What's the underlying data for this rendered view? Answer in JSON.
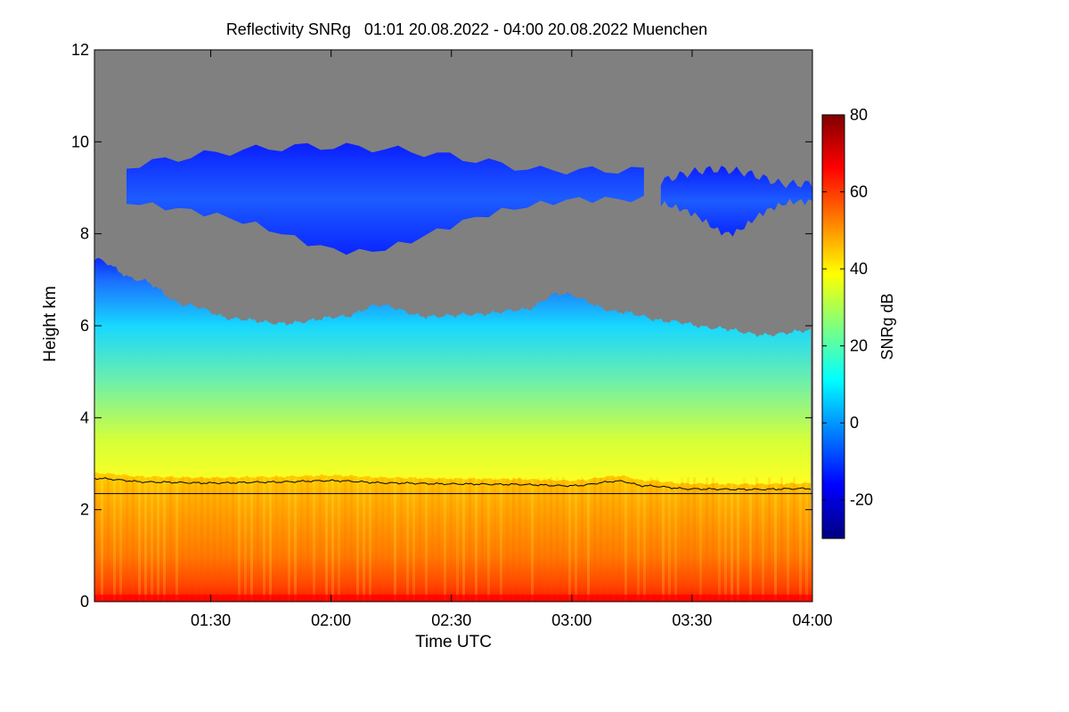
{
  "chart_data": {
    "type": "heatmap",
    "title": "Reflectivity SNRg   01:01 20.08.2022 - 04:00 20.08.2022 Muenchen",
    "xlabel": "Time UTC",
    "ylabel": "Height km",
    "colorbar_label": "SNRg dB",
    "x_start": "01:01",
    "x_end": "04:00",
    "x_range_hours": [
      1.0167,
      4.0
    ],
    "x_ticks": [
      {
        "label": "01:30",
        "value": 1.5
      },
      {
        "label": "02:00",
        "value": 2.0
      },
      {
        "label": "02:30",
        "value": 2.5
      },
      {
        "label": "03:00",
        "value": 3.0
      },
      {
        "label": "03:30",
        "value": 3.5
      },
      {
        "label": "04:00",
        "value": 4.0
      }
    ],
    "ylim": [
      0,
      12
    ],
    "y_ticks": [
      0,
      2,
      4,
      6,
      8,
      10,
      12
    ],
    "colorbar_range": [
      -30,
      80
    ],
    "colorbar_ticks": [
      -20,
      0,
      20,
      40,
      60,
      80
    ],
    "colormap": [
      "#00007f",
      "#0000ff",
      "#007fff",
      "#00ffff",
      "#7fff7f",
      "#ffff00",
      "#ff7f00",
      "#ff0000",
      "#7f0000"
    ],
    "no_signal_color": "#808080",
    "lower_boundary_km": 2.35,
    "boundary_layer_km": [
      [
        1.0167,
        2.68
      ],
      [
        1.25,
        2.6
      ],
      [
        1.5,
        2.58
      ],
      [
        1.75,
        2.6
      ],
      [
        2.0,
        2.63
      ],
      [
        2.25,
        2.58
      ],
      [
        2.5,
        2.56
      ],
      [
        2.75,
        2.55
      ],
      [
        3.0,
        2.52
      ],
      [
        3.2,
        2.62
      ],
      [
        3.3,
        2.52
      ],
      [
        3.5,
        2.45
      ],
      [
        3.75,
        2.44
      ],
      [
        4.0,
        2.46
      ]
    ],
    "cloud_top_low_km": [
      [
        1.0167,
        7.45
      ],
      [
        1.2,
        7.0
      ],
      [
        1.4,
        6.45
      ],
      [
        1.6,
        6.15
      ],
      [
        1.8,
        6.05
      ],
      [
        2.05,
        6.2
      ],
      [
        2.2,
        6.45
      ],
      [
        2.4,
        6.2
      ],
      [
        2.6,
        6.25
      ],
      [
        2.8,
        6.35
      ],
      [
        2.95,
        6.7
      ],
      [
        3.2,
        6.3
      ],
      [
        3.4,
        6.1
      ],
      [
        3.6,
        5.95
      ],
      [
        3.8,
        5.8
      ],
      [
        4.0,
        5.9
      ]
    ],
    "upper_cloud_layers_km": [
      {
        "t_start": 1.15,
        "t_end": 3.3,
        "base": 7.6,
        "top": 9.9
      },
      {
        "t_start": 3.37,
        "t_end": 4.0,
        "base": 8.0,
        "top": 9.4
      }
    ]
  }
}
